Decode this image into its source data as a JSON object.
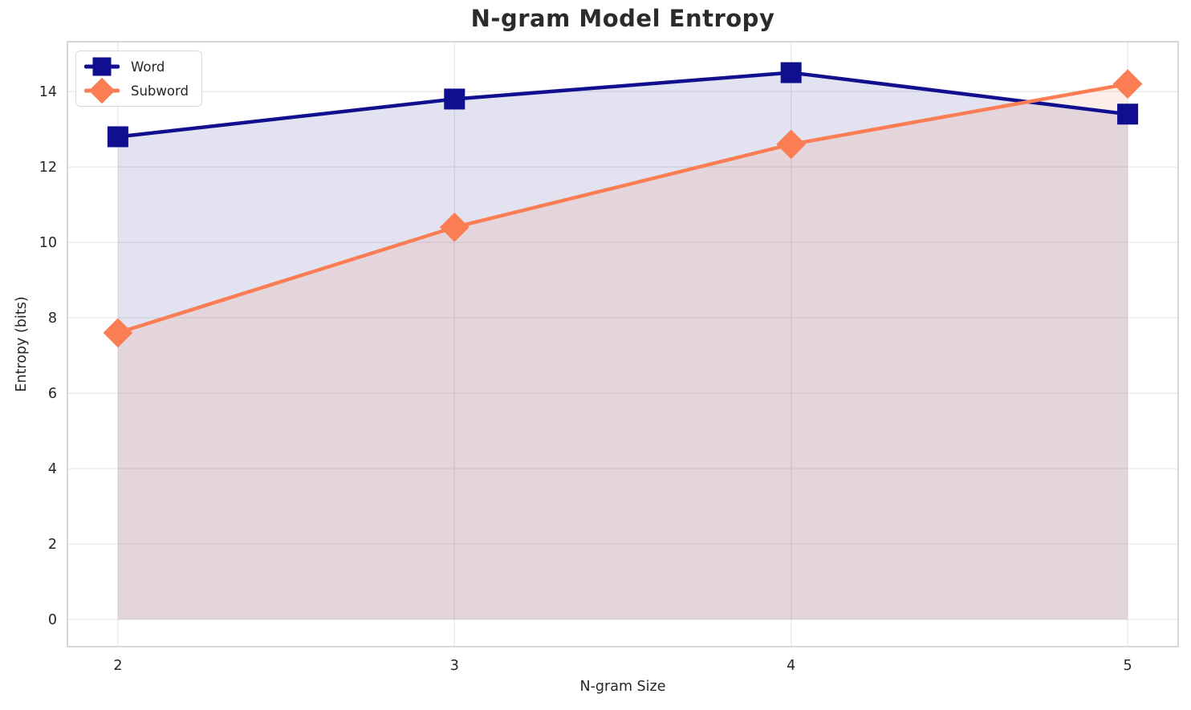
{
  "chart_data": {
    "type": "line",
    "title": "N-gram Model Entropy",
    "xlabel": "N-gram Size",
    "ylabel": "Entropy (bits)",
    "x": [
      2,
      3,
      4,
      5
    ],
    "xtick_labels": [
      "2",
      "3",
      "4",
      "5"
    ],
    "yticks": [
      0,
      2,
      4,
      6,
      8,
      10,
      12,
      14
    ],
    "ytick_labels": [
      "0",
      "2",
      "4",
      "6",
      "8",
      "10",
      "12",
      "14"
    ],
    "xlim": [
      1.85,
      5.15
    ],
    "ylim": [
      -0.72,
      15.32
    ],
    "grid": true,
    "legend_position": "upper-left",
    "fill_baseline": 0,
    "series": [
      {
        "name": "Word",
        "values": [
          12.8,
          13.8,
          14.5,
          13.4
        ],
        "color": "#0f0f8f",
        "marker": "square",
        "fill_color": "rgba(15,15,143,0.12)"
      },
      {
        "name": "Subword",
        "values": [
          7.6,
          10.4,
          12.6,
          14.2
        ],
        "color": "#fb7d53",
        "marker": "diamond",
        "fill_color": "rgba(251,125,83,0.13)"
      }
    ],
    "colors": {
      "grid": "#e9e9e9",
      "spine": "#cccccc",
      "text": "#262626",
      "title": "#2b2b2b"
    }
  }
}
